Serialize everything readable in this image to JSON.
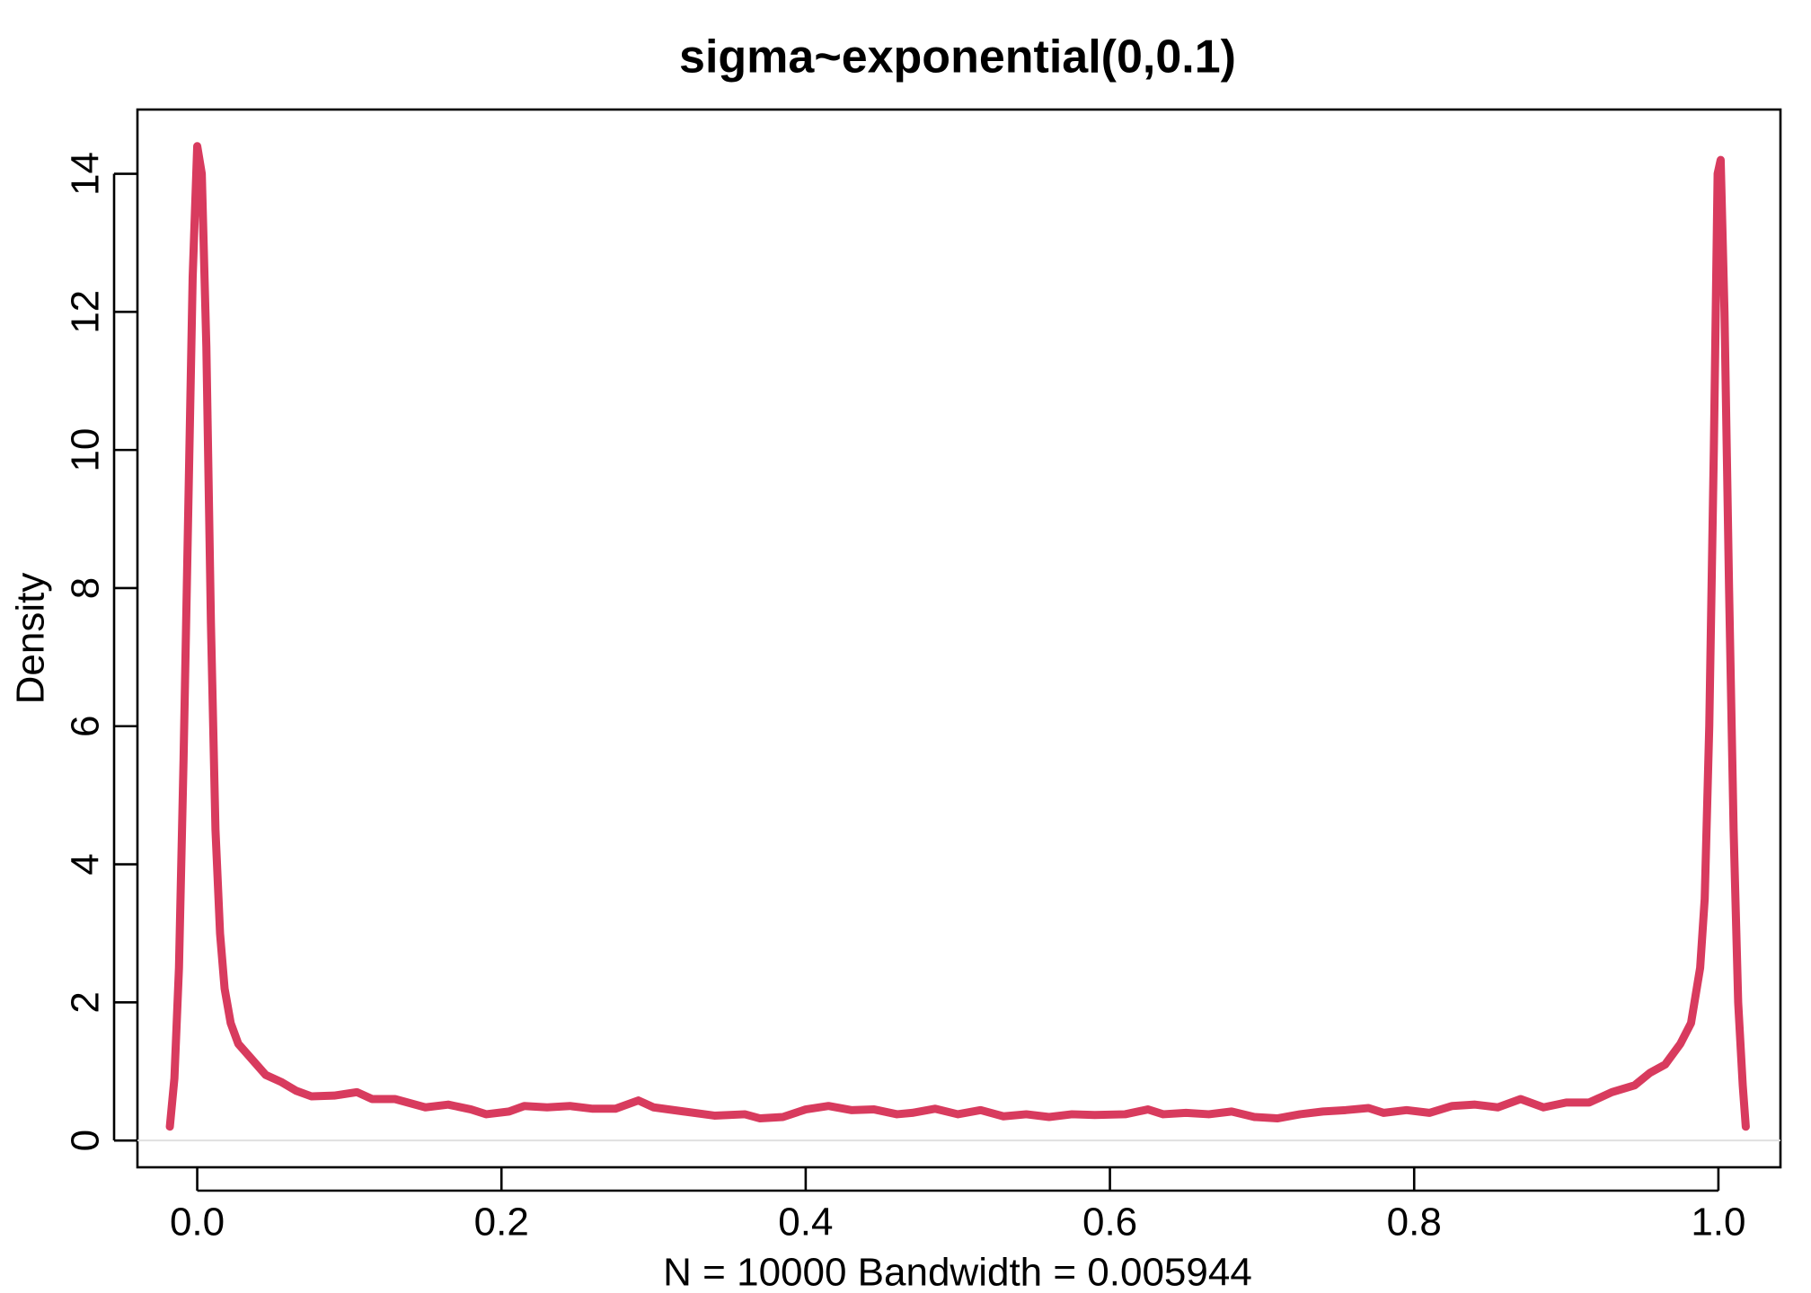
{
  "chart_data": {
    "type": "line",
    "title": "sigma~exponential(0,0.1)",
    "xlabel": "N = 10000   Bandwidth = 0.005944",
    "ylabel": "Density",
    "x": [
      -0.018,
      -0.015,
      -0.012,
      -0.009,
      -0.006,
      -0.003,
      0,
      0.003,
      0.006,
      0.009,
      0.012,
      0.015,
      0.018,
      0.022,
      0.027,
      0.035,
      0.045,
      0.055,
      0.065,
      0.075,
      0.09,
      0.105,
      0.115,
      0.13,
      0.15,
      0.165,
      0.18,
      0.19,
      0.205,
      0.215,
      0.23,
      0.245,
      0.26,
      0.275,
      0.29,
      0.3,
      0.32,
      0.34,
      0.36,
      0.37,
      0.385,
      0.4,
      0.415,
      0.43,
      0.445,
      0.46,
      0.47,
      0.485,
      0.5,
      0.515,
      0.53,
      0.545,
      0.56,
      0.575,
      0.59,
      0.61,
      0.625,
      0.635,
      0.65,
      0.665,
      0.68,
      0.695,
      0.71,
      0.725,
      0.74,
      0.755,
      0.77,
      0.78,
      0.795,
      0.81,
      0.825,
      0.84,
      0.855,
      0.87,
      0.885,
      0.9,
      0.915,
      0.93,
      0.945,
      0.955,
      0.965,
      0.975,
      0.982,
      0.988,
      0.991,
      0.994,
      0.997,
      0.9995,
      1.0015,
      1.004,
      1.007,
      1.01,
      1.013,
      1.016,
      1.018
    ],
    "series": [
      {
        "name": "density",
        "color": "#d83b5e",
        "values": [
          0.2,
          0.9,
          2.5,
          5.5,
          9,
          12.5,
          14.4,
          14,
          11.5,
          7.5,
          4.5,
          3,
          2.2,
          1.7,
          1.4,
          1.2,
          0.95,
          0.85,
          0.72,
          0.64,
          0.65,
          0.7,
          0.6,
          0.6,
          0.48,
          0.52,
          0.45,
          0.38,
          0.42,
          0.5,
          0.48,
          0.5,
          0.46,
          0.46,
          0.58,
          0.48,
          0.42,
          0.36,
          0.38,
          0.32,
          0.34,
          0.45,
          0.5,
          0.44,
          0.45,
          0.38,
          0.4,
          0.46,
          0.38,
          0.44,
          0.35,
          0.38,
          0.34,
          0.38,
          0.37,
          0.38,
          0.45,
          0.38,
          0.4,
          0.38,
          0.42,
          0.34,
          0.32,
          0.38,
          0.42,
          0.44,
          0.47,
          0.4,
          0.44,
          0.4,
          0.5,
          0.52,
          0.48,
          0.6,
          0.48,
          0.55,
          0.55,
          0.7,
          0.8,
          0.98,
          1.1,
          1.4,
          1.7,
          2.5,
          3.5,
          6,
          10,
          14,
          14.2,
          12,
          8,
          4.5,
          2,
          0.8,
          0.2
        ]
      }
    ],
    "xlim": [
      -0.0393,
      1.0408
    ],
    "ylim": [
      -0.388,
      14.93
    ],
    "xticks": [
      {
        "value": 0,
        "label": "0.0"
      },
      0.2,
      0.4,
      0.6,
      0.8,
      {
        "value": 1,
        "label": "1.0"
      }
    ],
    "yticks": [
      0,
      2,
      4,
      6,
      8,
      10,
      12,
      14
    ]
  }
}
